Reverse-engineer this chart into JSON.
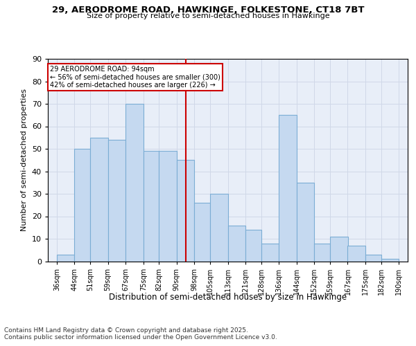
{
  "title1": "29, AERODROME ROAD, HAWKINGE, FOLKESTONE, CT18 7BT",
  "title2": "Size of property relative to semi-detached houses in Hawkinge",
  "xlabel": "Distribution of semi-detached houses by size in Hawkinge",
  "ylabel": "Number of semi-detached properties",
  "footnote1": "Contains HM Land Registry data © Crown copyright and database right 2025.",
  "footnote2": "Contains public sector information licensed under the Open Government Licence v3.0.",
  "annotation_title": "29 AERODROME ROAD: 94sqm",
  "annotation_line1": "← 56% of semi-detached houses are smaller (300)",
  "annotation_line2": "42% of semi-detached houses are larger (226) →",
  "property_size": 94,
  "bar_left_edges": [
    36,
    44,
    51,
    59,
    67,
    75,
    82,
    90,
    98,
    105,
    113,
    121,
    128,
    136,
    144,
    152,
    159,
    167,
    175,
    182
  ],
  "bar_widths": [
    8,
    7,
    8,
    8,
    8,
    7,
    8,
    8,
    7,
    8,
    8,
    7,
    8,
    8,
    8,
    7,
    8,
    8,
    7,
    8
  ],
  "bar_heights": [
    3,
    50,
    55,
    54,
    70,
    49,
    49,
    45,
    26,
    30,
    16,
    14,
    8,
    65,
    35,
    8,
    11,
    7,
    3,
    1
  ],
  "tick_labels": [
    "36sqm",
    "44sqm",
    "51sqm",
    "59sqm",
    "67sqm",
    "75sqm",
    "82sqm",
    "90sqm",
    "98sqm",
    "105sqm",
    "113sqm",
    "121sqm",
    "128sqm",
    "136sqm",
    "144sqm",
    "152sqm",
    "159sqm",
    "167sqm",
    "175sqm",
    "182sqm",
    "190sqm"
  ],
  "tick_positions": [
    36,
    44,
    51,
    59,
    67,
    75,
    82,
    90,
    98,
    105,
    113,
    121,
    128,
    136,
    144,
    152,
    159,
    167,
    175,
    182,
    190
  ],
  "ylim": [
    0,
    90
  ],
  "xlim": [
    32,
    194
  ],
  "bar_color": "#c5d9f0",
  "bar_edge_color": "#7badd4",
  "vline_color": "#cc0000",
  "vline_x": 94,
  "box_edge_color": "#cc0000",
  "grid_color": "#d0d8e8",
  "bg_color": "#e8eef8"
}
